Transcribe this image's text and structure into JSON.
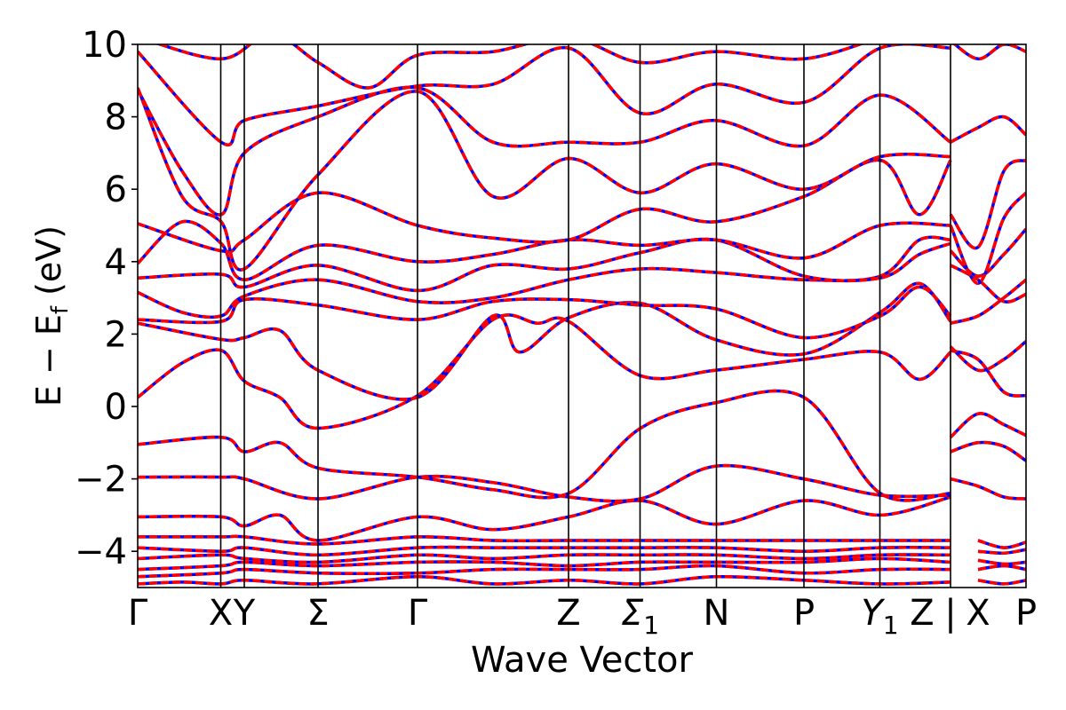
{
  "chart_data": {
    "type": "line",
    "title": "",
    "xlabel": "Wave Vector",
    "ylabel_main": "E − E",
    "ylabel_sub": "f",
    "ylabel_unit": " (eV)",
    "ylim": [
      -5,
      10
    ],
    "yticks": [
      "10",
      "8",
      "6",
      "4",
      "2",
      "0",
      "−2",
      "−4"
    ],
    "ytick_values": [
      10,
      8,
      6,
      4,
      2,
      0,
      -2,
      -4
    ],
    "grid": false,
    "legend": "none",
    "colors": {
      "red_series": "#ff0000",
      "blue_series": "#0000ff",
      "axes": "#000000"
    },
    "kpoint_labels": [
      {
        "main": "Γ",
        "sub": "",
        "k": 0.0
      },
      {
        "main": "X",
        "sub": "",
        "k": 0.0935
      },
      {
        "main": "Y",
        "sub": "",
        "k": 0.12
      },
      {
        "main": "Σ",
        "sub": "",
        "k": 0.203
      },
      {
        "main": "Γ",
        "sub": "",
        "k": 0.315
      },
      {
        "main": "Z",
        "sub": "",
        "k": 0.485
      },
      {
        "main": "Σ",
        "sub": "1",
        "k": 0.5655
      },
      {
        "main": "N",
        "sub": "",
        "k": 0.6515
      },
      {
        "main": "P",
        "sub": "",
        "k": 0.75
      },
      {
        "main": "Y",
        "sub": "1",
        "k": 0.8355
      },
      {
        "main": "Z",
        "sub": "",
        "k": 0.883
      },
      {
        "main": "|",
        "sub": "",
        "k": 0.915
      },
      {
        "main": "X",
        "sub": "",
        "k": 0.946
      },
      {
        "main": "P",
        "sub": "",
        "k": 1.0
      }
    ],
    "segment_boundaries": [
      0.0935,
      0.12,
      0.203,
      0.315,
      0.485,
      0.5655,
      0.6515,
      0.75,
      0.8355,
      0.915
    ],
    "bands": [
      [
        [
          0.0,
          -4.9
        ],
        [
          0.05,
          -4.85
        ],
        [
          0.094,
          -4.9
        ],
        [
          0.12,
          -4.8
        ],
        [
          0.2,
          -4.9
        ],
        [
          0.315,
          -4.7
        ],
        [
          0.4,
          -4.9
        ],
        [
          0.485,
          -4.8
        ],
        [
          0.566,
          -4.9
        ],
        [
          0.65,
          -4.7
        ],
        [
          0.75,
          -4.8
        ],
        [
          0.836,
          -4.9
        ],
        [
          0.915,
          -4.85
        ]
      ],
      [
        [
          0.0,
          -4.7
        ],
        [
          0.094,
          -4.6
        ],
        [
          0.12,
          -4.5
        ],
        [
          0.203,
          -4.6
        ],
        [
          0.315,
          -4.6
        ],
        [
          0.4,
          -4.5
        ],
        [
          0.485,
          -4.5
        ],
        [
          0.566,
          -4.5
        ],
        [
          0.65,
          -4.4
        ],
        [
          0.75,
          -4.6
        ],
        [
          0.836,
          -4.5
        ],
        [
          0.915,
          -4.5
        ]
      ],
      [
        [
          0.0,
          -4.5
        ],
        [
          0.094,
          -4.4
        ],
        [
          0.12,
          -4.3
        ],
        [
          0.203,
          -4.4
        ],
        [
          0.315,
          -4.3
        ],
        [
          0.4,
          -4.3
        ],
        [
          0.485,
          -4.4
        ],
        [
          0.566,
          -4.3
        ],
        [
          0.65,
          -4.3
        ],
        [
          0.75,
          -4.3
        ],
        [
          0.836,
          -4.2
        ],
        [
          0.915,
          -4.3
        ]
      ],
      [
        [
          0.0,
          -4.2
        ],
        [
          0.094,
          -4.1
        ],
        [
          0.12,
          -4.2
        ],
        [
          0.203,
          -4.3
        ],
        [
          0.315,
          -4.1
        ],
        [
          0.4,
          -4.2
        ],
        [
          0.485,
          -4.1
        ],
        [
          0.566,
          -4.1
        ],
        [
          0.65,
          -4.1
        ],
        [
          0.75,
          -4.2
        ],
        [
          0.836,
          -4.1
        ],
        [
          0.915,
          -4.1
        ]
      ],
      [
        [
          0.0,
          -3.9
        ],
        [
          0.094,
          -4.0
        ],
        [
          0.12,
          -3.9
        ],
        [
          0.203,
          -4.1
        ],
        [
          0.315,
          -3.9
        ],
        [
          0.4,
          -3.9
        ],
        [
          0.485,
          -3.9
        ],
        [
          0.566,
          -3.9
        ],
        [
          0.65,
          -3.9
        ],
        [
          0.75,
          -4.0
        ],
        [
          0.836,
          -3.9
        ],
        [
          0.915,
          -3.9
        ]
      ],
      [
        [
          0.0,
          -3.6
        ],
        [
          0.094,
          -3.6
        ],
        [
          0.12,
          -3.6
        ],
        [
          0.203,
          -3.8
        ],
        [
          0.315,
          -3.6
        ],
        [
          0.4,
          -3.7
        ],
        [
          0.485,
          -3.7
        ],
        [
          0.566,
          -3.7
        ],
        [
          0.65,
          -3.7
        ],
        [
          0.75,
          -3.7
        ],
        [
          0.836,
          -3.7
        ],
        [
          0.915,
          -3.7
        ]
      ],
      [
        [
          0.0,
          -3.05
        ],
        [
          0.094,
          -3.05
        ],
        [
          0.12,
          -3.3
        ],
        [
          0.16,
          -3.0
        ],
        [
          0.203,
          -3.7
        ],
        [
          0.315,
          -3.05
        ],
        [
          0.4,
          -3.4
        ],
        [
          0.485,
          -3.05
        ],
        [
          0.566,
          -2.6
        ],
        [
          0.65,
          -3.25
        ],
        [
          0.75,
          -2.6
        ],
        [
          0.836,
          -3.0
        ],
        [
          0.915,
          -2.5
        ]
      ],
      [
        [
          0.0,
          -1.95
        ],
        [
          0.094,
          -1.95
        ],
        [
          0.12,
          -2.0
        ],
        [
          0.203,
          -2.55
        ],
        [
          0.315,
          -1.95
        ],
        [
          0.4,
          -2.1
        ],
        [
          0.485,
          -2.5
        ],
        [
          0.566,
          -2.55
        ],
        [
          0.65,
          -1.65
        ],
        [
          0.75,
          -2.0
        ],
        [
          0.836,
          -2.45
        ],
        [
          0.915,
          -2.45
        ]
      ],
      [
        [
          0.0,
          -1.05
        ],
        [
          0.094,
          -0.85
        ],
        [
          0.12,
          -1.25
        ],
        [
          0.16,
          -1.0
        ],
        [
          0.203,
          -1.7
        ],
        [
          0.315,
          -1.95
        ],
        [
          0.4,
          -2.3
        ],
        [
          0.485,
          -2.4
        ],
        [
          0.566,
          -0.6
        ],
        [
          0.65,
          0.1
        ],
        [
          0.75,
          0.25
        ],
        [
          0.836,
          -2.4
        ],
        [
          0.915,
          -2.4
        ]
      ],
      [
        [
          0.0,
          0.25
        ],
        [
          0.05,
          1.2
        ],
        [
          0.094,
          1.55
        ],
        [
          0.12,
          0.7
        ],
        [
          0.16,
          0.25
        ],
        [
          0.203,
          -0.6
        ],
        [
          0.315,
          0.3
        ],
        [
          0.4,
          2.4
        ],
        [
          0.45,
          2.3
        ],
        [
          0.485,
          2.35
        ],
        [
          0.566,
          0.85
        ],
        [
          0.65,
          1.0
        ],
        [
          0.75,
          1.3
        ],
        [
          0.836,
          1.5
        ],
        [
          0.88,
          0.75
        ],
        [
          0.915,
          1.5
        ]
      ],
      [
        [
          0.0,
          2.3
        ],
        [
          0.094,
          1.85
        ],
        [
          0.12,
          1.9
        ],
        [
          0.16,
          2.1
        ],
        [
          0.203,
          1.0
        ],
        [
          0.315,
          0.25
        ],
        [
          0.4,
          2.5
        ],
        [
          0.43,
          1.5
        ],
        [
          0.485,
          2.45
        ],
        [
          0.566,
          2.85
        ],
        [
          0.65,
          1.85
        ],
        [
          0.75,
          1.45
        ],
        [
          0.836,
          2.6
        ],
        [
          0.88,
          3.4
        ],
        [
          0.915,
          2.35
        ]
      ],
      [
        [
          0.0,
          2.4
        ],
        [
          0.094,
          2.35
        ],
        [
          0.12,
          2.95
        ],
        [
          0.203,
          2.8
        ],
        [
          0.315,
          2.4
        ],
        [
          0.4,
          2.9
        ],
        [
          0.485,
          2.95
        ],
        [
          0.566,
          2.8
        ],
        [
          0.65,
          2.7
        ],
        [
          0.75,
          1.9
        ],
        [
          0.836,
          2.5
        ],
        [
          0.88,
          3.3
        ],
        [
          0.915,
          2.5
        ]
      ],
      [
        [
          0.0,
          3.15
        ],
        [
          0.05,
          2.6
        ],
        [
          0.094,
          2.5
        ],
        [
          0.12,
          3.05
        ],
        [
          0.203,
          3.5
        ],
        [
          0.315,
          2.9
        ],
        [
          0.4,
          3.0
        ],
        [
          0.485,
          3.5
        ],
        [
          0.566,
          3.8
        ],
        [
          0.65,
          3.7
        ],
        [
          0.75,
          3.5
        ],
        [
          0.836,
          3.6
        ],
        [
          0.88,
          4.6
        ],
        [
          0.915,
          4.6
        ]
      ],
      [
        [
          0.0,
          3.55
        ],
        [
          0.094,
          3.65
        ],
        [
          0.12,
          3.3
        ],
        [
          0.203,
          3.9
        ],
        [
          0.315,
          3.2
        ],
        [
          0.4,
          3.9
        ],
        [
          0.485,
          3.8
        ],
        [
          0.566,
          4.25
        ],
        [
          0.65,
          4.6
        ],
        [
          0.75,
          3.6
        ],
        [
          0.836,
          3.55
        ],
        [
          0.88,
          4.2
        ],
        [
          0.915,
          4.5
        ]
      ],
      [
        [
          0.0,
          3.95
        ],
        [
          0.05,
          5.1
        ],
        [
          0.094,
          4.5
        ],
        [
          0.12,
          3.5
        ],
        [
          0.203,
          4.45
        ],
        [
          0.315,
          4.0
        ],
        [
          0.4,
          4.2
        ],
        [
          0.485,
          4.6
        ],
        [
          0.566,
          4.45
        ],
        [
          0.65,
          4.6
        ],
        [
          0.75,
          4.1
        ],
        [
          0.836,
          5.0
        ],
        [
          0.915,
          5.0
        ]
      ],
      [
        [
          0.0,
          5.05
        ],
        [
          0.094,
          4.3
        ],
        [
          0.12,
          4.6
        ],
        [
          0.203,
          5.9
        ],
        [
          0.315,
          5.0
        ],
        [
          0.4,
          4.65
        ],
        [
          0.485,
          4.6
        ],
        [
          0.566,
          5.45
        ],
        [
          0.65,
          5.1
        ],
        [
          0.75,
          5.8
        ],
        [
          0.836,
          6.8
        ],
        [
          0.88,
          5.3
        ],
        [
          0.915,
          6.8
        ]
      ],
      [
        [
          0.0,
          8.8
        ],
        [
          0.05,
          5.8
        ],
        [
          0.094,
          5.1
        ],
        [
          0.12,
          3.8
        ],
        [
          0.203,
          6.4
        ],
        [
          0.315,
          8.7
        ],
        [
          0.4,
          5.8
        ],
        [
          0.485,
          6.85
        ],
        [
          0.566,
          5.9
        ],
        [
          0.65,
          6.7
        ],
        [
          0.75,
          6.0
        ],
        [
          0.836,
          6.9
        ],
        [
          0.915,
          6.9
        ]
      ],
      [
        [
          0.0,
          8.75
        ],
        [
          0.05,
          6.5
        ],
        [
          0.094,
          5.3
        ],
        [
          0.12,
          7.0
        ],
        [
          0.203,
          8.0
        ],
        [
          0.315,
          8.8
        ],
        [
          0.4,
          7.3
        ],
        [
          0.485,
          7.3
        ],
        [
          0.566,
          7.3
        ],
        [
          0.65,
          7.9
        ],
        [
          0.75,
          7.2
        ],
        [
          0.836,
          8.6
        ],
        [
          0.915,
          7.3
        ]
      ],
      [
        [
          0.0,
          9.8
        ],
        [
          0.094,
          7.3
        ],
        [
          0.12,
          7.9
        ],
        [
          0.203,
          8.3
        ],
        [
          0.315,
          8.85
        ],
        [
          0.4,
          8.9
        ],
        [
          0.485,
          9.9
        ],
        [
          0.566,
          8.1
        ],
        [
          0.65,
          8.9
        ],
        [
          0.75,
          8.4
        ],
        [
          0.836,
          9.9
        ],
        [
          0.915,
          9.9
        ]
      ],
      [
        [
          0.0,
          10.2
        ],
        [
          0.094,
          9.6
        ],
        [
          0.15,
          10.3
        ],
        [
          0.203,
          9.5
        ],
        [
          0.26,
          8.8
        ],
        [
          0.315,
          9.7
        ],
        [
          0.4,
          9.8
        ],
        [
          0.485,
          10.2
        ],
        [
          0.566,
          9.5
        ],
        [
          0.65,
          9.8
        ],
        [
          0.75,
          9.6
        ],
        [
          0.836,
          10.2
        ]
      ],
      [
        [
          0.946,
          -4.8
        ],
        [
          0.975,
          -4.9
        ],
        [
          1.0,
          -4.8
        ]
      ],
      [
        [
          0.946,
          -4.5
        ],
        [
          0.975,
          -4.4
        ],
        [
          1.0,
          -4.5
        ]
      ],
      [
        [
          0.946,
          -4.25
        ],
        [
          0.975,
          -4.35
        ],
        [
          1.0,
          -4.3
        ]
      ],
      [
        [
          0.946,
          -4.0
        ],
        [
          0.975,
          -4.05
        ],
        [
          1.0,
          -3.95
        ]
      ],
      [
        [
          0.946,
          -3.7
        ],
        [
          0.975,
          -3.9
        ],
        [
          1.0,
          -3.75
        ]
      ],
      [
        [
          0.915,
          -2.0
        ],
        [
          0.946,
          -2.2
        ],
        [
          0.975,
          -2.5
        ],
        [
          1.0,
          -2.55
        ]
      ],
      [
        [
          0.915,
          -1.25
        ],
        [
          0.946,
          -1.0
        ],
        [
          0.975,
          -1.1
        ],
        [
          1.0,
          -1.5
        ]
      ],
      [
        [
          0.915,
          -0.85
        ],
        [
          0.946,
          -0.2
        ],
        [
          0.975,
          -0.5
        ],
        [
          1.0,
          -0.8
        ]
      ],
      [
        [
          0.915,
          1.55
        ],
        [
          0.946,
          1.3
        ],
        [
          0.975,
          0.4
        ],
        [
          1.0,
          0.3
        ]
      ],
      [
        [
          0.915,
          1.65
        ],
        [
          0.946,
          1.0
        ],
        [
          0.975,
          1.3
        ],
        [
          1.0,
          1.8
        ]
      ],
      [
        [
          0.915,
          2.3
        ],
        [
          0.946,
          2.5
        ],
        [
          0.975,
          3.0
        ],
        [
          1.0,
          3.5
        ]
      ],
      [
        [
          0.915,
          3.9
        ],
        [
          0.946,
          3.5
        ],
        [
          0.975,
          2.9
        ],
        [
          1.0,
          3.1
        ]
      ],
      [
        [
          0.915,
          4.3
        ],
        [
          0.946,
          3.6
        ],
        [
          0.975,
          4.2
        ],
        [
          1.0,
          4.9
        ]
      ],
      [
        [
          0.915,
          5.0
        ],
        [
          0.946,
          3.4
        ],
        [
          0.975,
          5.2
        ],
        [
          1.0,
          5.9
        ]
      ],
      [
        [
          0.915,
          5.3
        ],
        [
          0.946,
          4.4
        ],
        [
          0.975,
          6.5
        ],
        [
          1.0,
          6.8
        ]
      ],
      [
        [
          0.915,
          7.3
        ],
        [
          0.946,
          7.7
        ],
        [
          0.975,
          8.0
        ],
        [
          1.0,
          7.5
        ]
      ],
      [
        [
          0.915,
          10.1
        ],
        [
          0.946,
          9.6
        ],
        [
          0.975,
          10.0
        ],
        [
          1.0,
          9.8
        ]
      ]
    ]
  }
}
